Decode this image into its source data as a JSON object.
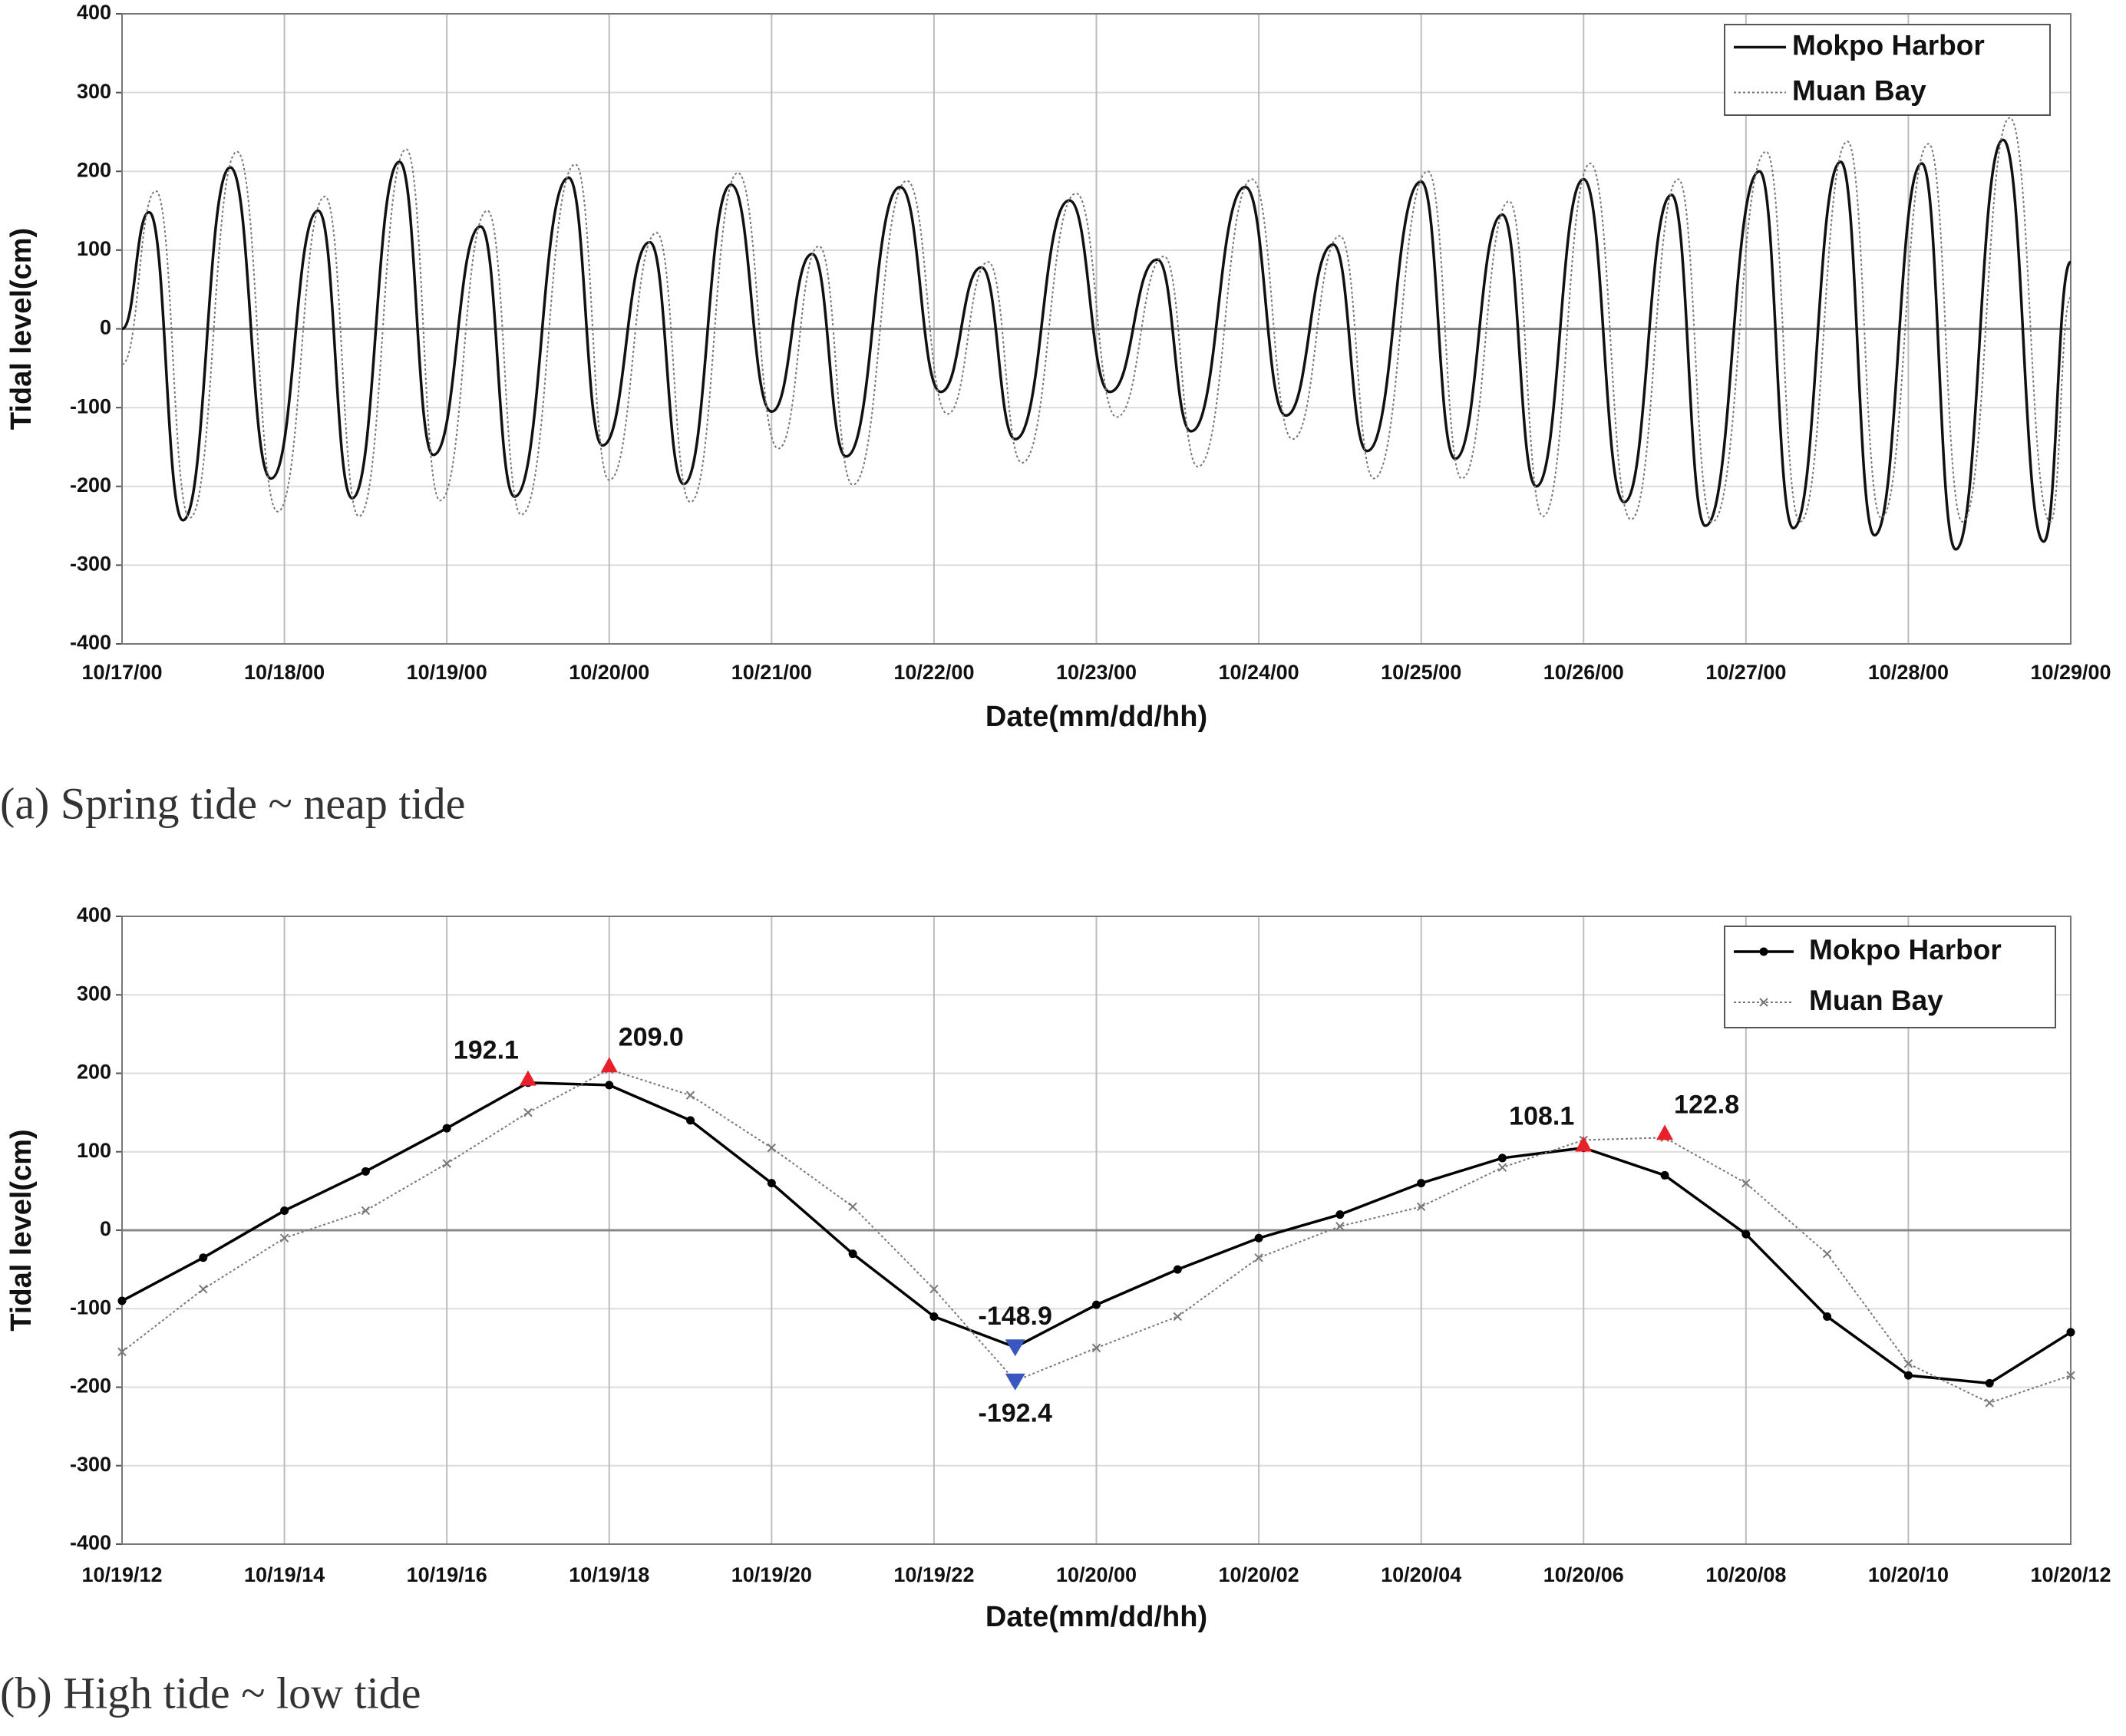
{
  "chart_data": [
    {
      "type": "line",
      "caption": "(a) Spring tide ~ neap tide",
      "xlabel": "Date(mm/dd/hh)",
      "ylabel": "Tidal level(cm)",
      "xlim": [
        "10/17/00",
        "10/29/00"
      ],
      "xticks": [
        "10/17/00",
        "10/18/00",
        "10/19/00",
        "10/20/00",
        "10/21/00",
        "10/22/00",
        "10/23/00",
        "10/24/00",
        "10/25/00",
        "10/26/00",
        "10/27/00",
        "10/28/00",
        "10/29/00"
      ],
      "ylim": [
        -400,
        400
      ],
      "yticks": [
        -400,
        -300,
        -200,
        -100,
        0,
        100,
        200,
        300,
        400
      ],
      "grid": true,
      "legend": "top-right",
      "series": [
        {
          "name": "Mokpo Harbor",
          "color": "#111111",
          "style": "solid",
          "x": [
            "10/17/00",
            "10/17/04",
            "10/17/09",
            "10/17/16",
            "10/17/22",
            "10/18/05",
            "10/18/10",
            "10/18/17",
            "10/18/22",
            "10/19/05",
            "10/19/10",
            "10/19/18",
            "10/19/23",
            "10/20/06",
            "10/20/11",
            "10/20/18",
            "10/21/00",
            "10/21/06",
            "10/21/11",
            "10/21/19",
            "10/22/01",
            "10/22/07",
            "10/22/12",
            "10/22/20",
            "10/23/02",
            "10/23/09",
            "10/23/14",
            "10/23/22",
            "10/24/04",
            "10/24/11",
            "10/24/16",
            "10/25/00",
            "10/25/05",
            "10/25/12",
            "10/25/17",
            "10/26/00",
            "10/26/06",
            "10/26/13",
            "10/26/18",
            "10/27/02",
            "10/27/07",
            "10/27/14",
            "10/27/19",
            "10/28/02",
            "10/28/07",
            "10/28/14",
            "10/28/20",
            "10/29/00"
          ],
          "values": [
            0,
            148,
            -243,
            205,
            -190,
            150,
            -215,
            212,
            -160,
            130,
            -213,
            192,
            -148,
            110,
            -197,
            183,
            -105,
            95,
            -162,
            180,
            -80,
            78,
            -140,
            163,
            -80,
            88,
            -130,
            180,
            -110,
            107,
            -155,
            187,
            -165,
            145,
            -200,
            190,
            -220,
            170,
            -250,
            200,
            -253,
            212,
            -262,
            210,
            -280,
            240,
            -270,
            85
          ]
        },
        {
          "name": "Muan Bay",
          "color": "#777777",
          "style": "dotted",
          "x": [
            "10/17/00",
            "10/17/05",
            "10/17/10",
            "10/17/17",
            "10/17/23",
            "10/18/06",
            "10/18/11",
            "10/18/18",
            "10/18/23",
            "10/19/06",
            "10/19/11",
            "10/19/19",
            "10/20/00",
            "10/20/07",
            "10/20/12",
            "10/20/19",
            "10/21/01",
            "10/21/07",
            "10/21/12",
            "10/21/20",
            "10/22/02",
            "10/22/08",
            "10/22/13",
            "10/22/21",
            "10/23/03",
            "10/23/10",
            "10/23/15",
            "10/23/23",
            "10/24/05",
            "10/24/12",
            "10/24/17",
            "10/25/01",
            "10/25/06",
            "10/25/13",
            "10/25/18",
            "10/26/01",
            "10/26/07",
            "10/26/14",
            "10/26/19",
            "10/27/03",
            "10/27/08",
            "10/27/15",
            "10/27/20",
            "10/28/03",
            "10/28/08",
            "10/28/15",
            "10/28/21",
            "10/29/00"
          ],
          "values": [
            -45,
            175,
            -240,
            225,
            -232,
            168,
            -238,
            228,
            -218,
            150,
            -236,
            209,
            -192,
            122,
            -220,
            198,
            -152,
            105,
            -198,
            188,
            -108,
            85,
            -170,
            172,
            -112,
            92,
            -175,
            190,
            -140,
            118,
            -190,
            200,
            -190,
            162,
            -238,
            210,
            -242,
            190,
            -245,
            225,
            -245,
            238,
            -240,
            235,
            -245,
            268,
            -245,
            40
          ]
        }
      ]
    },
    {
      "type": "line",
      "caption": "(b) High tide ~ low tide",
      "xlabel": "Date(mm/dd/hh)",
      "ylabel": "Tidal level(cm)",
      "xlim": [
        "10/19/12",
        "10/20/12"
      ],
      "xticks": [
        "10/19/12",
        "10/19/14",
        "10/19/16",
        "10/19/18",
        "10/19/20",
        "10/19/22",
        "10/20/00",
        "10/20/02",
        "10/20/04",
        "10/20/06",
        "10/20/08",
        "10/20/10",
        "10/20/12"
      ],
      "ylim": [
        -400,
        400
      ],
      "yticks": [
        -400,
        -300,
        -200,
        -100,
        0,
        100,
        200,
        300,
        400
      ],
      "grid": true,
      "legend": "top-right",
      "series": [
        {
          "name": "Mokpo Harbor",
          "color": "#000000",
          "style": "solid",
          "marker": "dot",
          "x": [
            "10/19/12",
            "10/19/13",
            "10/19/14",
            "10/19/15",
            "10/19/16",
            "10/19/17",
            "10/19/18",
            "10/19/19",
            "10/19/20",
            "10/19/21",
            "10/19/22",
            "10/19/23",
            "10/20/00",
            "10/20/01",
            "10/20/02",
            "10/20/03",
            "10/20/04",
            "10/20/05",
            "10/20/06",
            "10/20/07",
            "10/20/08",
            "10/20/09",
            "10/20/10",
            "10/20/11",
            "10/20/12"
          ],
          "values": [
            -90,
            -35,
            25,
            75,
            130,
            188,
            185,
            140,
            60,
            -30,
            -110,
            -149,
            -95,
            -50,
            -10,
            20,
            60,
            92,
            105,
            70,
            -5,
            -110,
            -185,
            -195,
            -130
          ]
        },
        {
          "name": "Muan Bay",
          "color": "#777777",
          "style": "dotted",
          "marker": "x",
          "x": [
            "10/19/12",
            "10/19/13",
            "10/19/14",
            "10/19/15",
            "10/19/16",
            "10/19/17",
            "10/19/18",
            "10/19/19",
            "10/19/20",
            "10/19/21",
            "10/19/22",
            "10/19/23",
            "10/20/00",
            "10/20/01",
            "10/20/02",
            "10/20/03",
            "10/20/04",
            "10/20/05",
            "10/20/06",
            "10/20/07",
            "10/20/08",
            "10/20/09",
            "10/20/10",
            "10/20/11",
            "10/20/12"
          ],
          "values": [
            -155,
            -75,
            -10,
            25,
            85,
            150,
            205,
            172,
            105,
            30,
            -75,
            -192,
            -150,
            -110,
            -35,
            5,
            30,
            80,
            115,
            118,
            60,
            -30,
            -170,
            -220,
            -185
          ]
        }
      ],
      "highs": {
        "color": "#e8202a",
        "x": [
          "10/19/17",
          "10/19/18",
          "10/20/06",
          "10/20/07"
        ],
        "values": [
          192.1,
          209,
          108.1,
          122.8
        ],
        "value_labels": [
          "192.1",
          "209.0",
          "108.1",
          "122.8"
        ]
      },
      "lows": {
        "color": "#3a56c0",
        "x": [
          "10/19/23",
          "10/19/23"
        ],
        "values": [
          -148.9,
          -192.4
        ],
        "value_labels": [
          "-148.9",
          "-192.4"
        ]
      }
    }
  ]
}
